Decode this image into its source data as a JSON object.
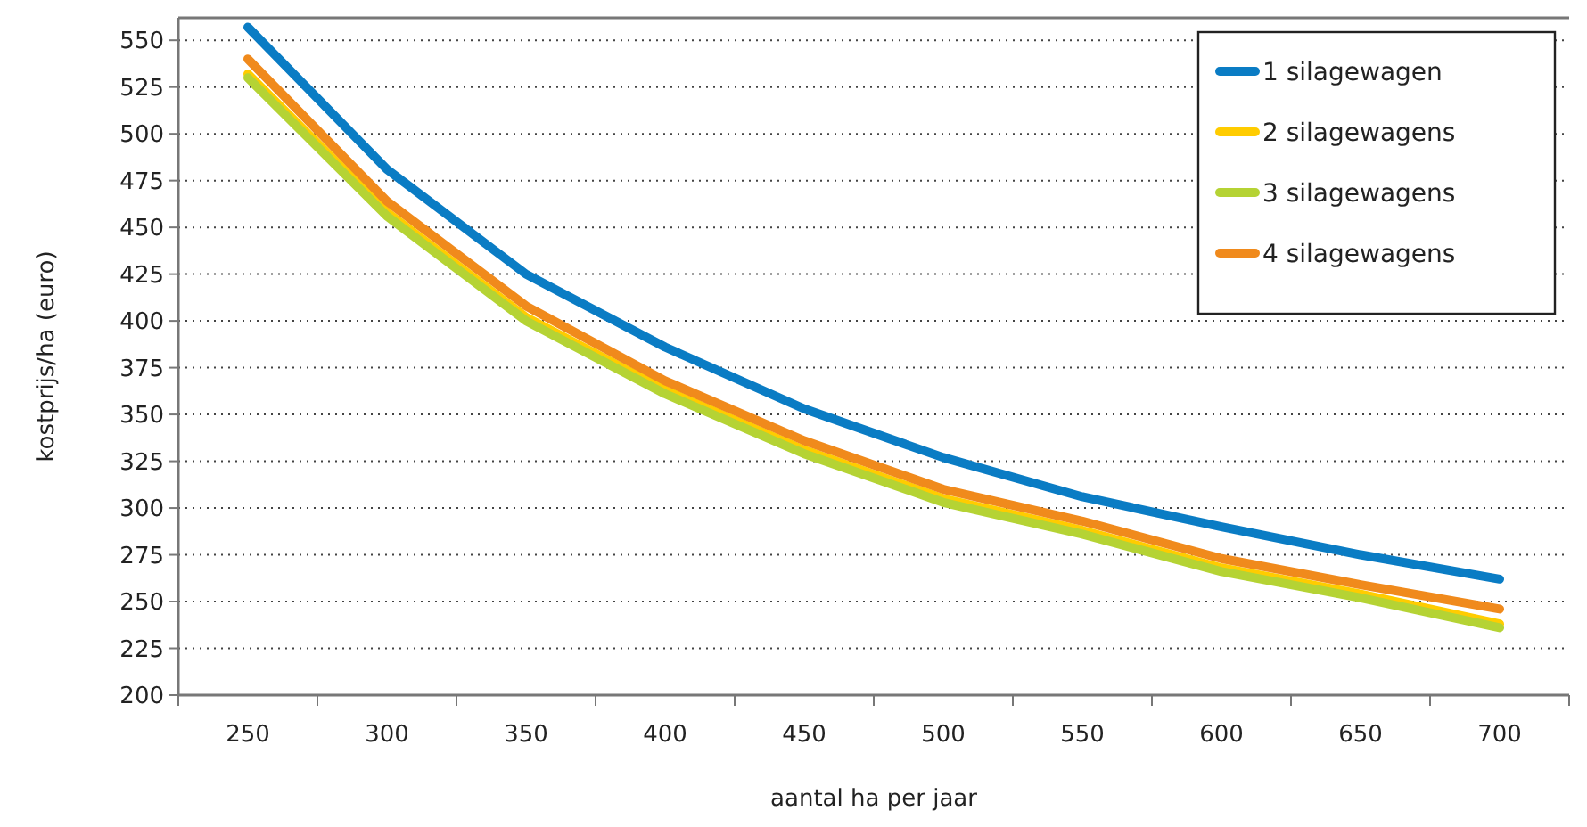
{
  "chart_data": {
    "type": "line",
    "xlabel": "aantal ha per jaar",
    "ylabel": "kostprijs/ha (euro)",
    "categories": [
      "250",
      "300",
      "350",
      "400",
      "450",
      "500",
      "550",
      "600",
      "650",
      "700"
    ],
    "series": [
      {
        "name": "1 silagewagen",
        "color": "#0a7cc4",
        "values": [
          557,
          481,
          425,
          386,
          353,
          327,
          306,
          290,
          275,
          262
        ]
      },
      {
        "name": "2 silagewagens",
        "color": "#ffcc00",
        "values": [
          532,
          458,
          402,
          363,
          331,
          305,
          288,
          268,
          254,
          238
        ]
      },
      {
        "name": "3 silagewagens",
        "color": "#b5d334",
        "values": [
          530,
          456,
          400,
          361,
          329,
          303,
          286,
          266,
          252,
          236
        ]
      },
      {
        "name": "4 silagewagens",
        "color": "#f08a1c",
        "values": [
          540,
          464,
          408,
          368,
          336,
          310,
          293,
          273,
          259,
          246
        ]
      }
    ],
    "ylim": [
      200,
      562
    ],
    "yticks": [
      200,
      225,
      250,
      275,
      300,
      325,
      350,
      375,
      400,
      425,
      450,
      475,
      500,
      525,
      550
    ],
    "grid": "y",
    "legend": "top right",
    "marker": "none",
    "line_style": "solid"
  }
}
